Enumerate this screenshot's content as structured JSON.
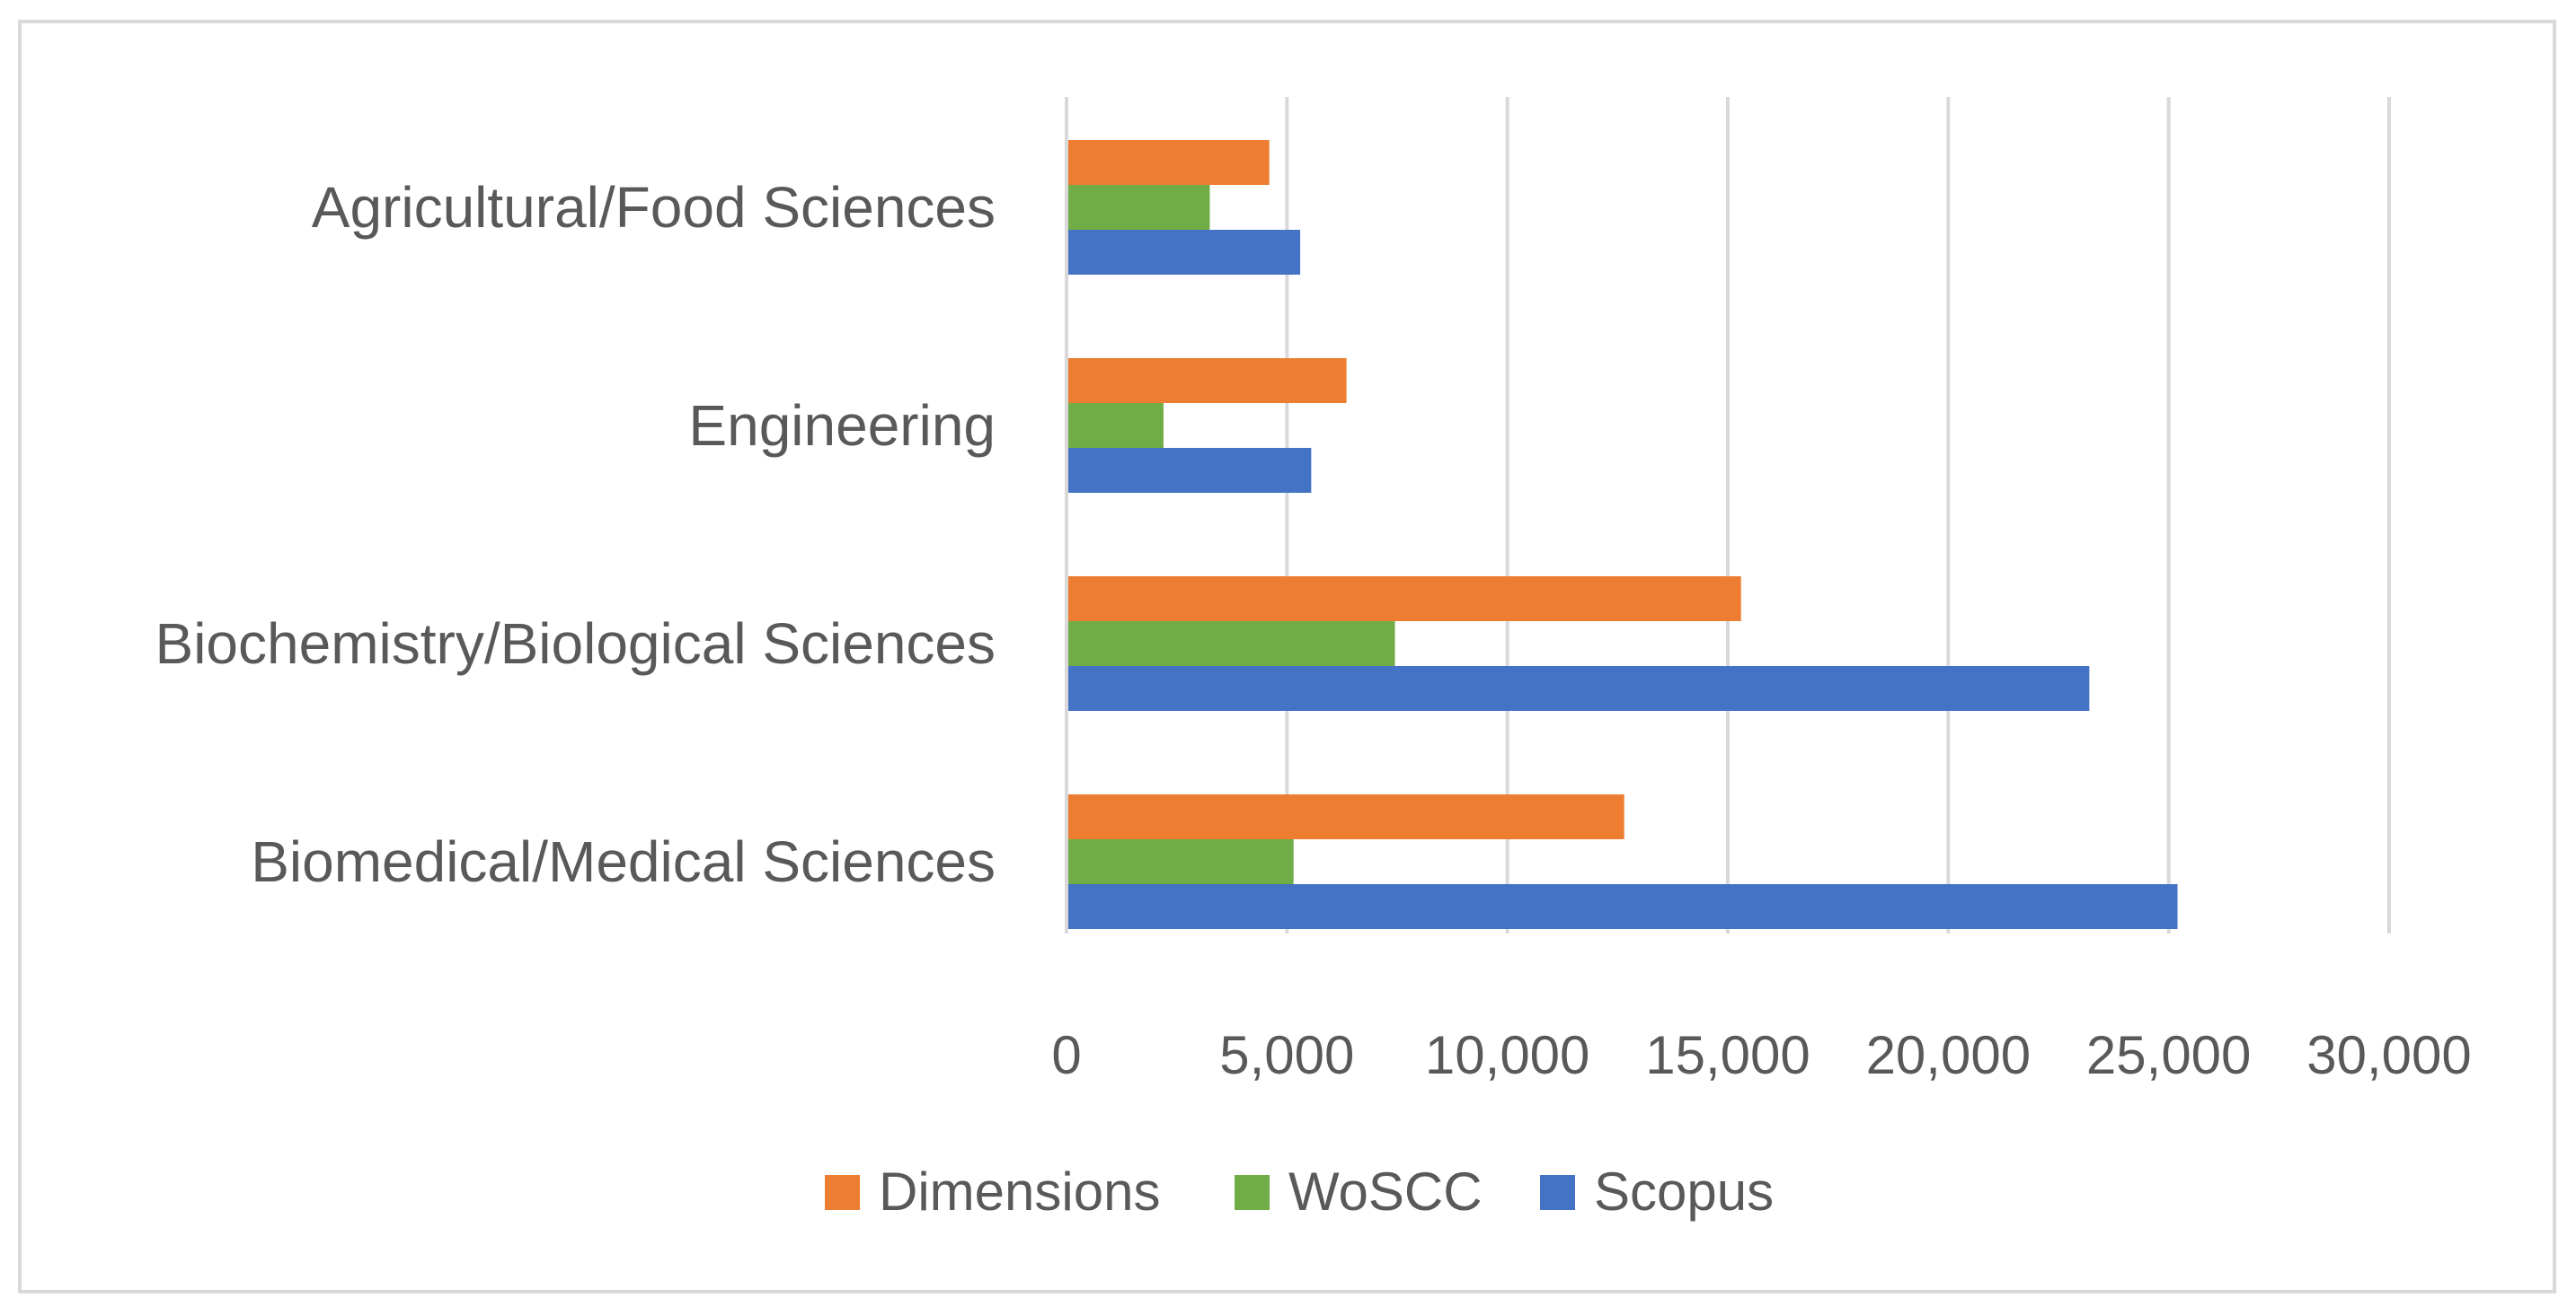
{
  "chart_data": {
    "type": "bar",
    "orientation": "horizontal",
    "title": "",
    "xlabel": "",
    "ylabel": "",
    "categories": [
      "Agricultural/Food Sciences",
      "Engineering",
      "Biochemistry/Biological Sciences",
      "Biomedical/Medical Sciences"
    ],
    "series": [
      {
        "name": "Dimensions",
        "color": "#ed7d31",
        "values": [
          4600,
          6350,
          15300,
          12650
        ]
      },
      {
        "name": "WoSCC",
        "color": "#70ad47",
        "values": [
          3250,
          2200,
          7450,
          5150
        ]
      },
      {
        "name": "Scopus",
        "color": "#4472c4",
        "values": [
          5300,
          5550,
          23200,
          25200
        ]
      }
    ],
    "xlim": [
      0,
      30000
    ],
    "xticks": [
      0,
      5000,
      10000,
      15000,
      20000,
      25000,
      30000
    ],
    "xtick_labels": [
      "0",
      "5,000",
      "10,000",
      "15,000",
      "20,000",
      "25,000",
      "30,000"
    ],
    "grid": true,
    "legend_position": "bottom",
    "legend_order": [
      "Dimensions",
      "WoSCC",
      "Scopus"
    ]
  }
}
